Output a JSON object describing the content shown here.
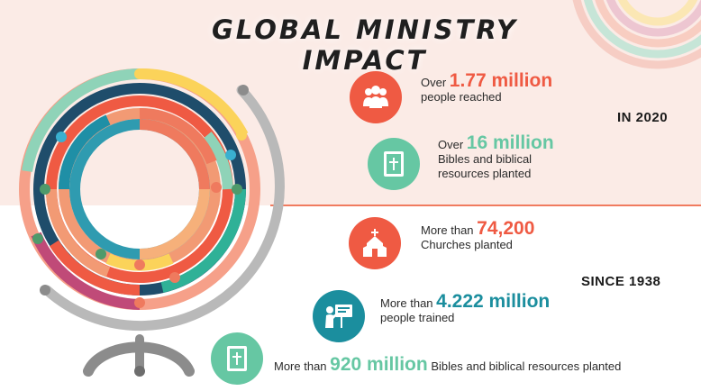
{
  "title": "GLOBAL MINISTRY IMPACT",
  "periods": {
    "in_2020": "IN 2020",
    "since_1938": "SINCE 1938"
  },
  "colors": {
    "red": "#ef5a43",
    "teal": "#66c7a3",
    "blue": "#1b8e9e",
    "top_band": "#fbebe6"
  },
  "stats": [
    {
      "prefix": "Over",
      "value": "1.77 million",
      "desc": "people reached",
      "icon": "people-group-icon",
      "color": "#ef5a43"
    },
    {
      "prefix": "Over",
      "value": "16 million",
      "desc_line1": "Bibles and biblical",
      "desc_line2": "resources planted",
      "icon": "bible-icon",
      "color": "#66c7a3"
    },
    {
      "prefix": "More than",
      "value": "74,200",
      "desc": "Churches planted",
      "icon": "church-icon",
      "color": "#ef5a43"
    },
    {
      "prefix": "More than",
      "value": "4.222 million",
      "desc": "people trained",
      "icon": "teacher-icon",
      "color": "#1b8e9e"
    },
    {
      "prefix": "More than",
      "value": "920 million",
      "suffix": "Bibles and biblical resources planted",
      "icon": "bible-icon",
      "color": "#66c7a3"
    }
  ]
}
